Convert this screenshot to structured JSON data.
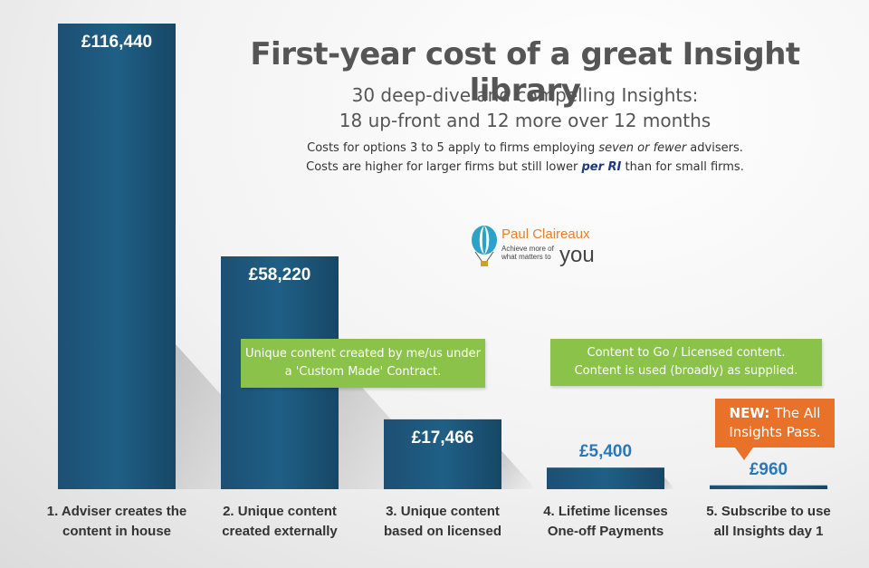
{
  "header": {
    "title": "First-year cost of a great Insight library",
    "subtitle_1": "30 deep-dive and compelling Insights:",
    "subtitle_2": "18 up-front and 12 more over 12 months",
    "note_1_pre": "Costs for options 3 to 5 apply to firms employing ",
    "note_1_em": "seven or fewer",
    "note_1_post": " advisers.",
    "note_2_pre": "Costs are higher for larger firms but still lower ",
    "note_2_em": "per RI",
    "note_2_post": " than for small firms."
  },
  "logo": {
    "name": "Paul Claireaux",
    "tagline_1": "Achieve more of",
    "tagline_2": "what matters to",
    "you": "you"
  },
  "boxes": {
    "custom_line_1": "Unique content created by me/us under",
    "custom_line_2": "a 'Custom Made' Contract.",
    "licensed_line_1": "Content to Go / Licensed content.",
    "licensed_line_2": "Content is used (broadly) as supplied."
  },
  "callout": {
    "bold": "NEW:",
    "text_1": " The All",
    "text_2": "Insights Pass."
  },
  "colors": {
    "bar": "#1a5276",
    "bar_light": "#2c6e99",
    "label_inside": "#ffffff",
    "label_outside": "#2a78b8",
    "green": "#8bc34a",
    "orange": "#e8722a"
  },
  "chart_data": {
    "type": "bar",
    "categories": [
      [
        "1. Adviser creates the",
        "content in house"
      ],
      [
        "2. Unique content",
        "created externally"
      ],
      [
        "3. Unique content",
        "based on licensed"
      ],
      [
        "4. Lifetime licenses",
        "One-off Payments"
      ],
      [
        "5. Subscribe to use",
        "all Insights day 1"
      ]
    ],
    "values": [
      116440,
      58220,
      17466,
      5400,
      960
    ],
    "value_labels": [
      "£116,440",
      "£58,220",
      "£17,466",
      "£5,400",
      "£960"
    ],
    "title": "First-year cost of a great Insight library",
    "ylim": [
      0,
      116440
    ],
    "grid": false,
    "legend": "none"
  }
}
